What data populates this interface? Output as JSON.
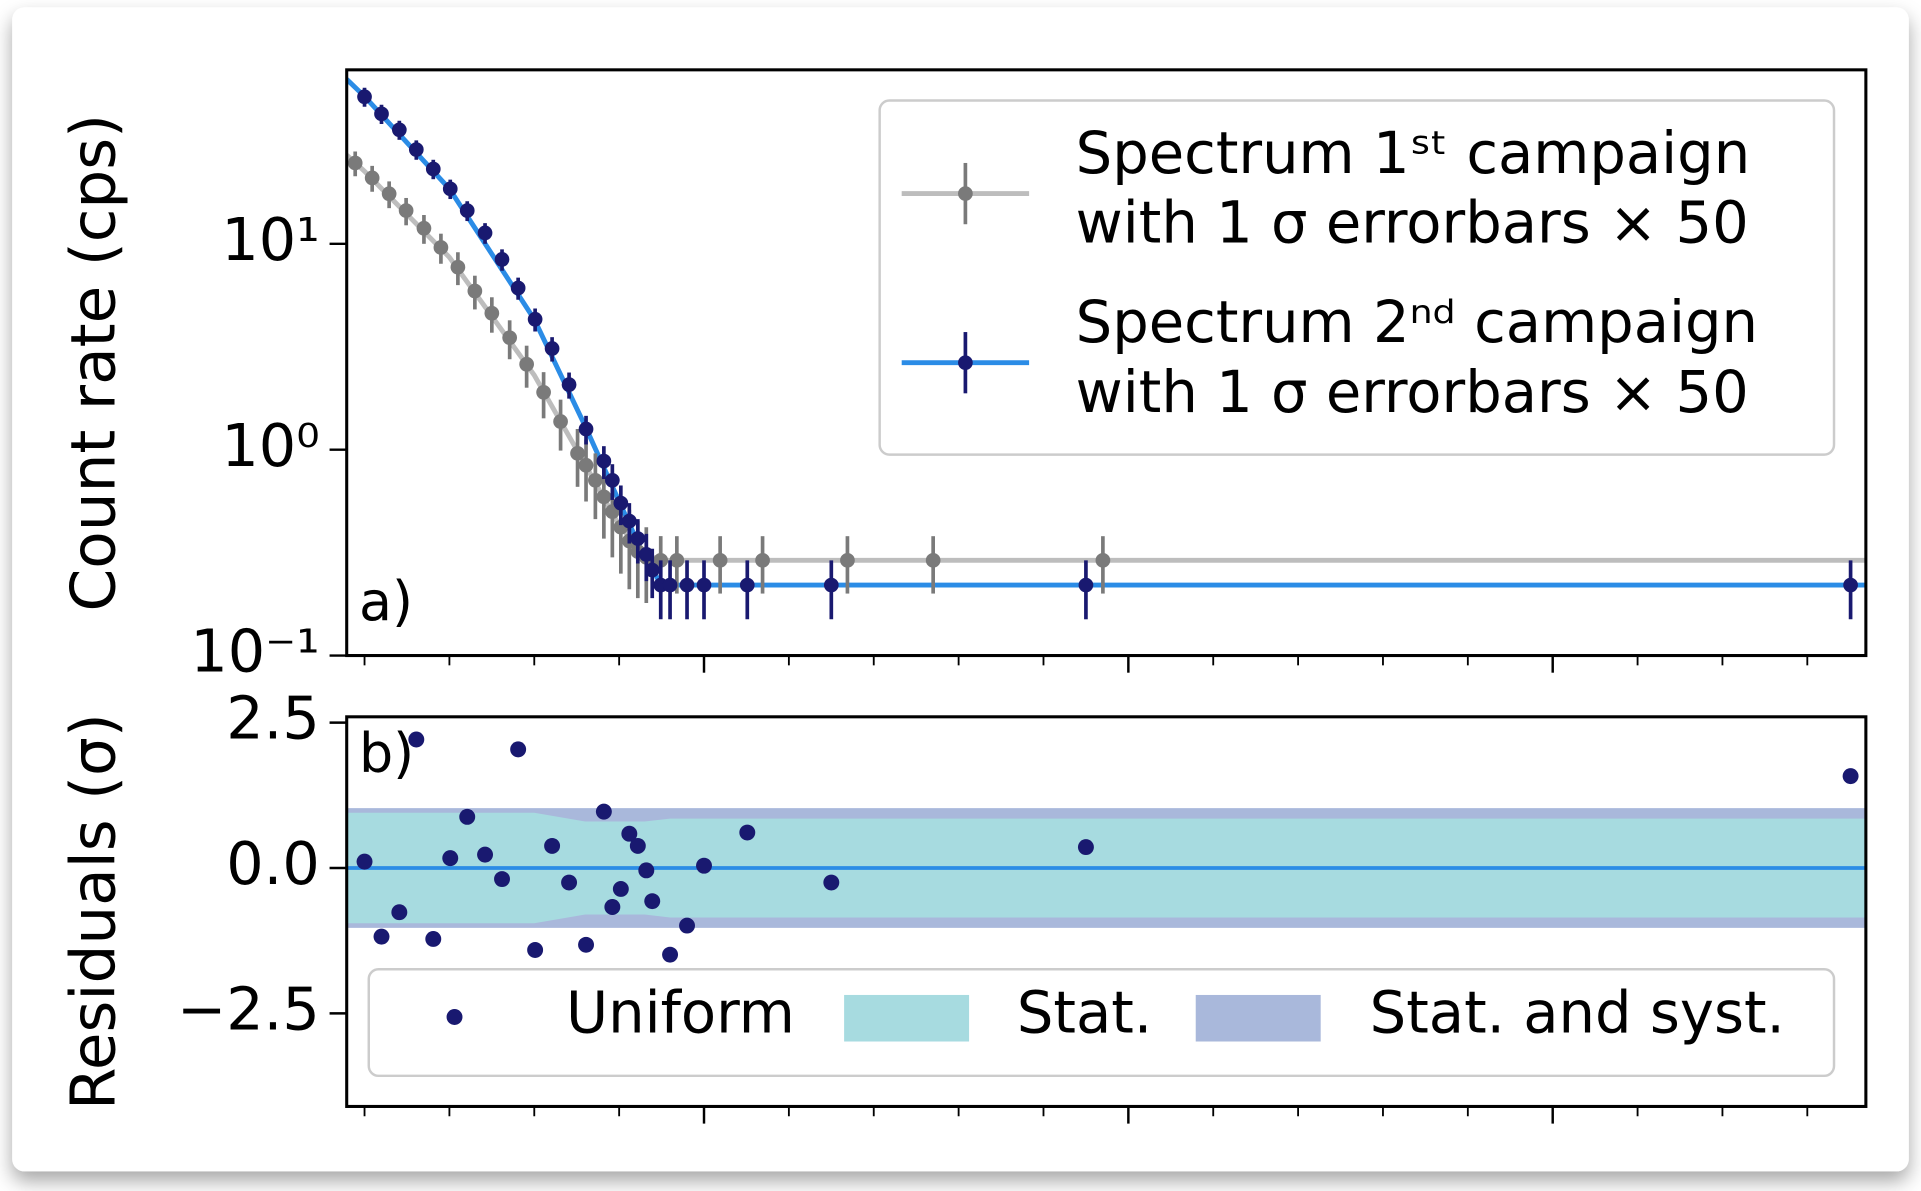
{
  "chart_data": [
    {
      "type": "errorbar",
      "ylabel": "Count rate (cps)",
      "annotation": "a)",
      "log_y": true,
      "legend": "upper right",
      "xlim": [
        0.79,
        18.69
      ],
      "xticks": [
        1,
        2,
        3,
        4,
        6,
        7,
        8,
        9,
        11,
        12,
        13,
        14,
        16,
        17,
        18
      ],
      "major_xticks": [
        5,
        10,
        15
      ],
      "ylim": [
        0.1,
        70
      ],
      "yticks": [
        {
          "value": 0.1,
          "label": "10⁻¹"
        },
        {
          "value": 1,
          "label": "10⁰"
        },
        {
          "value": 10,
          "label": "10¹"
        }
      ],
      "series": [
        {
          "name": "Spectrum 1ˢᵗ campaign\nwith 1 σ errorbars × 50",
          "color": "#7a7a7a",
          "line_color": "#bdbdbd",
          "x": [
            0.89,
            1.09,
            1.29,
            1.49,
            1.7,
            1.9,
            2.1,
            2.3,
            2.5,
            2.71,
            2.91,
            3.11,
            3.31,
            3.51,
            3.61,
            3.72,
            3.82,
            3.92,
            4.02,
            4.12,
            4.22,
            4.32,
            4.49,
            4.68,
            5.19,
            5.69,
            6.69,
            7.7,
            9.7
          ],
          "values": [
            24.7,
            20.9,
            17.5,
            14.5,
            11.9,
            9.6,
            7.7,
            5.9,
            4.6,
            3.5,
            2.6,
            1.9,
            1.37,
            0.96,
            0.84,
            0.71,
            0.59,
            0.5,
            0.42,
            0.36,
            0.32,
            0.3,
            0.29,
            0.29,
            0.29,
            0.29,
            0.29,
            0.29,
            0.29
          ],
          "errors": [
            3.4,
            3.0,
            2.6,
            2.2,
            1.9,
            1.6,
            1.4,
            1.1,
            0.9,
            0.75,
            0.6,
            0.48,
            0.38,
            0.3,
            0.28,
            0.25,
            0.22,
            0.2,
            0.17,
            0.15,
            0.13,
            0.12,
            0.09,
            0.09,
            0.09,
            0.09,
            0.09,
            0.09,
            0.09
          ],
          "fit_x": [
            0.79,
            1.0,
            2.0,
            3.0,
            3.5,
            4.0,
            4.3,
            4.5,
            18.69
          ],
          "fit_values": [
            27,
            22.5,
            8.6,
            2.3,
            1.0,
            0.43,
            0.31,
            0.29,
            0.29
          ]
        },
        {
          "name": "Spectrum 2ⁿᵈ campaign\nwith 1 σ errorbars × 50",
          "color": "#191970",
          "line_color": "#2b8ce6",
          "x": [
            1.0,
            1.2,
            1.41,
            1.61,
            1.81,
            2.01,
            2.21,
            2.42,
            2.62,
            2.81,
            3.01,
            3.21,
            3.41,
            3.61,
            3.82,
            3.92,
            4.02,
            4.12,
            4.22,
            4.32,
            4.39,
            4.49,
            4.6,
            4.8,
            5.0,
            5.51,
            6.5,
            9.5,
            18.51
          ],
          "values": [
            51.8,
            42.8,
            35.8,
            28.7,
            23.1,
            18.5,
            14.5,
            11.3,
            8.4,
            6.1,
            4.3,
            3.1,
            2.07,
            1.26,
            0.88,
            0.71,
            0.55,
            0.45,
            0.37,
            0.31,
            0.26,
            0.22,
            0.22,
            0.22,
            0.22,
            0.22,
            0.22,
            0.22,
            0.22
          ],
          "errors": [
            5.5,
            4.6,
            3.8,
            3.1,
            2.5,
            2.0,
            1.6,
            1.3,
            1.0,
            0.75,
            0.55,
            0.42,
            0.3,
            0.2,
            0.16,
            0.14,
            0.12,
            0.1,
            0.09,
            0.08,
            0.07,
            0.07,
            0.07,
            0.07,
            0.07,
            0.07,
            0.07,
            0.07,
            0.07
          ],
          "fit_x": [
            0.79,
            1.0,
            2.0,
            3.0,
            3.6,
            4.0,
            4.3,
            4.5,
            18.69
          ],
          "fit_values": [
            63,
            52,
            18.5,
            4.3,
            1.3,
            0.56,
            0.3,
            0.22,
            0.22
          ]
        }
      ]
    },
    {
      "type": "residuals",
      "ylabel": "Residuals (σ)",
      "annotation": "b)",
      "legend": "lower center",
      "xlim": [
        0.79,
        18.69
      ],
      "xticks": [
        1,
        2,
        3,
        4,
        6,
        7,
        8,
        9,
        11,
        12,
        13,
        14,
        16,
        17,
        18
      ],
      "major_xticks": [
        5,
        10,
        15
      ],
      "ylim": [
        -4.1,
        2.6
      ],
      "yticks": [
        {
          "value": -2.5,
          "label": "−2.5"
        },
        {
          "value": 0,
          "label": "0.0"
        },
        {
          "value": 2.5,
          "label": "2.5"
        }
      ],
      "reference_line": 0,
      "reference_color": "#2b8ce6",
      "bands": [
        {
          "name": "Stat.",
          "color": "#a7dbe0",
          "x": [
            0.79,
            3.0,
            3.6,
            4.3,
            4.6,
            18.69
          ],
          "upper": [
            0.95,
            0.95,
            0.8,
            0.8,
            0.85,
            0.85
          ],
          "lower": [
            -0.95,
            -0.95,
            -0.8,
            -0.8,
            -0.85,
            -0.85
          ]
        },
        {
          "name": "Stat. and syst.",
          "color": "#a9b8db",
          "x": [
            0.79,
            18.69
          ],
          "upper": [
            1.03,
            1.03
          ],
          "lower": [
            -1.03,
            -1.03
          ]
        }
      ],
      "series": [
        {
          "name": "Uniform",
          "color": "#191970",
          "x": [
            1.0,
            1.2,
            1.41,
            1.61,
            1.81,
            2.01,
            2.21,
            2.42,
            2.62,
            2.81,
            3.01,
            3.21,
            3.41,
            3.61,
            3.82,
            3.92,
            4.02,
            4.12,
            4.22,
            4.32,
            4.39,
            4.6,
            4.8,
            5.0,
            5.51,
            6.5,
            9.5,
            18.51
          ],
          "values": [
            0.11,
            -1.18,
            -0.76,
            2.21,
            -1.22,
            0.17,
            0.88,
            0.23,
            -0.19,
            2.04,
            -1.41,
            0.38,
            -0.25,
            -1.32,
            0.97,
            -0.67,
            -0.36,
            0.59,
            0.38,
            -0.04,
            -0.57,
            -1.49,
            -0.99,
            0.04,
            0.61,
            -0.25,
            0.36,
            1.58
          ]
        }
      ]
    }
  ]
}
